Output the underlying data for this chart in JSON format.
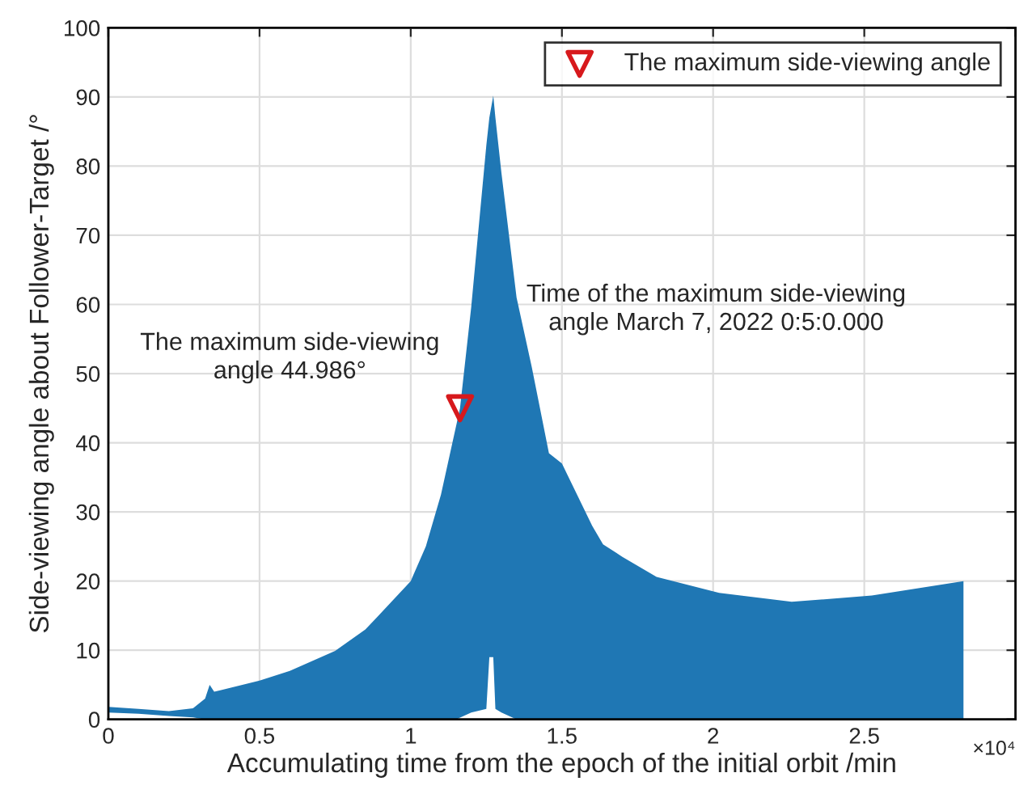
{
  "chart_data": {
    "type": "area",
    "xlabel": "Accumulating time from the epoch of the initial orbit /min",
    "ylabel": "Side-viewing angle about Follower-Target /°",
    "series": [
      {
        "color": "#1f77b4",
        "x": [
          0,
          0.1,
          0.2,
          0.28,
          0.32,
          0.335,
          0.35,
          0.37,
          0.5,
          0.6,
          0.75,
          0.85,
          0.9,
          1.0,
          1.05,
          1.1,
          1.163,
          1.2,
          1.25,
          1.26,
          1.273,
          1.28,
          1.3,
          1.35,
          1.4,
          1.457,
          1.5,
          1.6,
          1.636,
          1.7,
          1.813,
          2.02,
          2.26,
          2.525,
          2.828
        ],
        "values": [
          1.8,
          1.5,
          1.2,
          1.6,
          3.0,
          5.0,
          4.0,
          4.2,
          5.6,
          7.0,
          9.9,
          13,
          15.3,
          20,
          25,
          32.5,
          45,
          59.6,
          83,
          87,
          90.2,
          87,
          79,
          61,
          51,
          38.5,
          37,
          28,
          25.3,
          23.5,
          20.6,
          18.3,
          17.0,
          17.9,
          20.0
        ]
      },
      {
        "color": "#ffffff",
        "x": [
          0,
          0.1,
          0.2,
          0.28,
          0.32,
          1.15,
          1.2,
          1.25,
          1.26,
          1.273,
          1.28,
          1.3,
          1.35
        ],
        "values": [
          1.0,
          0.8,
          0.5,
          0.3,
          0,
          0,
          1,
          1.5,
          9,
          9,
          1.5,
          1,
          0
        ]
      },
      {
        "type": "scatter",
        "name": "The maximum side-viewing angle",
        "color": "#d7191c",
        "marker": "triangle",
        "x": [
          1.163
        ],
        "values": [
          44.986
        ]
      }
    ],
    "annotations": [
      "The maximum side-viewing\nangle 44.986°",
      "Time of the maximum side-viewing\nangle March 7, 2022 0:5:0.000",
      "×10⁴"
    ],
    "xlim": [
      0,
      3
    ],
    "ylim": [
      0,
      100
    ],
    "xticks": [
      0,
      0.5,
      1,
      1.5,
      2,
      2.5,
      {
        "value": 3,
        "label": null
      }
    ],
    "yticks": [
      0,
      10,
      20,
      30,
      40,
      50,
      60,
      70,
      80,
      90,
      100
    ],
    "grid": true,
    "legend": "top right"
  }
}
